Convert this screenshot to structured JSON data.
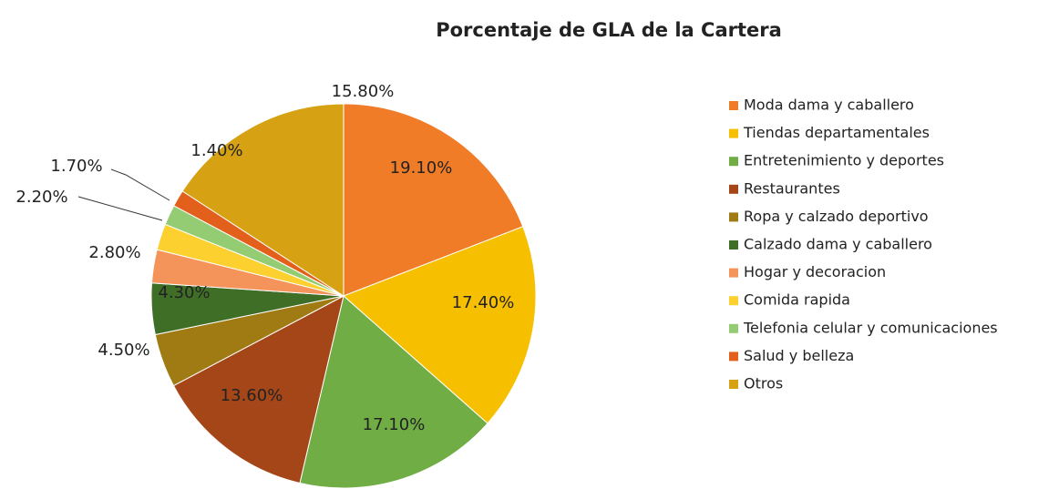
{
  "chart_data": {
    "type": "pie",
    "title": "Porcentaje de GLA de la Cartera",
    "categories": [
      "Moda dama y caballero",
      "Tiendas departamentales",
      "Entretenimiento y deportes",
      "Restaurantes",
      "Ropa y calzado deportivo",
      "Calzado dama y caballero",
      "Hogar y decoracion",
      "Comida rapida",
      "Telefonia celular y comunicaciones",
      "Salud y belleza",
      "Otros"
    ],
    "values": [
      19.1,
      17.4,
      17.1,
      13.6,
      4.5,
      4.3,
      2.8,
      2.2,
      1.7,
      1.4,
      15.8
    ],
    "value_labels": [
      "19.10%",
      "17.40%",
      "17.10%",
      "13.60%",
      "4.50%",
      "4.30%",
      "2.80%",
      "2.20%",
      "1.70%",
      "1.40%",
      "15.80%"
    ],
    "colors": [
      "#f07c28",
      "#f6c000",
      "#70ad45",
      "#a54619",
      "#a07a12",
      "#3f6f26",
      "#f4935a",
      "#fcd02e",
      "#93cc72",
      "#e2601c",
      "#d6a214"
    ],
    "legend": "right"
  }
}
